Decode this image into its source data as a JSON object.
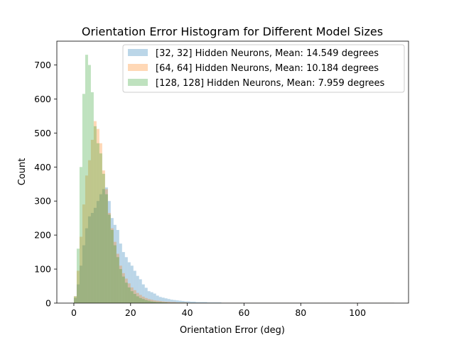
{
  "chart_data": {
    "type": "bar",
    "title": "Orientation Error Histogram for Different Model Sizes",
    "xlabel": "Orientation Error (deg)",
    "ylabel": "Count",
    "xlim": [
      -6,
      118
    ],
    "ylim": [
      0,
      770
    ],
    "xticks": [
      0,
      20,
      40,
      60,
      80,
      100
    ],
    "yticks": [
      0,
      100,
      200,
      300,
      400,
      500,
      600,
      700
    ],
    "legend_position": "top-right",
    "series": [
      {
        "name": "[32, 32] Hidden Neurons, Mean: 14.549 degrees",
        "color": "#1f77b4",
        "opacity": 0.3,
        "bin_start": 0,
        "bin_width": 1,
        "counts": [
          15,
          55,
          110,
          170,
          220,
          255,
          265,
          280,
          300,
          320,
          335,
          340,
          300,
          250,
          230,
          215,
          175,
          150,
          135,
          120,
          110,
          95,
          80,
          70,
          55,
          45,
          35,
          32,
          28,
          22,
          18,
          16,
          14,
          12,
          10,
          9,
          8,
          7,
          6,
          5,
          5,
          4,
          4,
          3,
          3,
          3,
          3,
          2,
          2,
          2,
          2,
          2,
          1,
          1,
          1,
          1,
          1,
          1,
          1,
          1,
          1,
          1,
          1,
          1,
          1,
          1,
          1,
          1,
          1,
          1,
          1,
          1,
          1,
          1,
          1,
          1,
          1,
          1,
          1,
          1,
          1,
          1,
          1,
          1,
          1,
          1,
          1,
          1,
          1,
          1,
          1,
          1,
          1,
          1,
          1,
          1,
          1,
          1,
          1,
          1,
          1,
          1,
          1,
          1,
          1,
          1,
          1,
          1,
          1,
          1,
          1,
          1,
          1
        ]
      },
      {
        "name": "[64, 64] Hidden Neurons, Mean: 10.184 degrees",
        "color": "#ff7f0e",
        "opacity": 0.3,
        "bin_start": 0,
        "bin_width": 1,
        "counts": [
          20,
          95,
          195,
          290,
          375,
          420,
          480,
          535,
          512,
          470,
          390,
          335,
          265,
          220,
          180,
          145,
          110,
          88,
          72,
          58,
          46,
          38,
          30,
          24,
          19,
          15,
          12,
          10,
          8,
          7,
          6,
          5,
          4,
          4,
          3,
          3,
          2,
          2,
          2,
          2,
          1,
          1,
          1,
          1,
          1,
          1,
          1,
          1,
          1,
          1,
          1,
          1,
          1,
          1,
          1,
          1,
          1,
          1,
          1,
          1,
          1,
          1,
          1,
          1,
          1,
          1,
          1,
          1,
          1,
          1,
          1,
          1,
          1,
          1,
          1,
          1,
          1,
          1,
          1,
          1,
          1,
          1,
          1,
          1,
          1,
          1,
          1,
          1,
          1,
          1,
          1,
          1,
          1,
          1,
          1,
          1,
          1,
          1,
          1,
          1,
          1,
          1,
          1,
          1,
          1,
          1,
          1,
          1,
          1,
          1,
          1,
          1,
          1
        ]
      },
      {
        "name": "[128, 128] Hidden Neurons, Mean: 7.959 degrees",
        "color": "#2ca02c",
        "opacity": 0.3,
        "bin_start": 0,
        "bin_width": 1,
        "counts": [
          20,
          160,
          400,
          615,
          730,
          700,
          620,
          520,
          470,
          440,
          380,
          320,
          260,
          215,
          170,
          135,
          100,
          78,
          60,
          46,
          35,
          27,
          20,
          15,
          12,
          9,
          7,
          5,
          4,
          3,
          3,
          2,
          2,
          1,
          1,
          1,
          1,
          1,
          1,
          1
        ]
      }
    ]
  }
}
